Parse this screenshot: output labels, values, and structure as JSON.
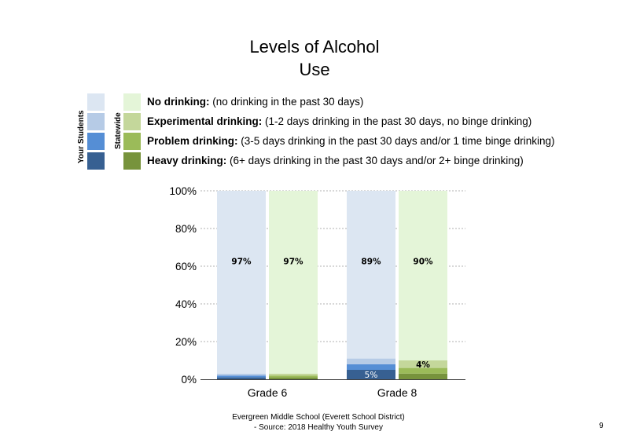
{
  "title_line1": "Levels of Alcohol",
  "title_line2": "Use",
  "legend": {
    "your_students_label": "Your Students",
    "statewide_label": "Statewide",
    "items": [
      {
        "bold": "No drinking:",
        "desc": " (no drinking in the past 30 days)",
        "your_color": "#dce6f2",
        "state_color": "#e4f5d8"
      },
      {
        "bold": "Experimental drinking:",
        "desc": " (1-2 days drinking in the past 30 days, no binge drinking)",
        "your_color": "#b6cbe6",
        "state_color": "#c4d79b"
      },
      {
        "bold": "Problem drinking:",
        "desc": " (3-5 days drinking in the past 30 days and/or 1 time binge drinking)",
        "your_color": "#558ed5",
        "state_color": "#9bbb59"
      },
      {
        "bold": "Heavy drinking:",
        "desc": " (6+ days drinking in the past 30 days and/or 2+ binge drinking)",
        "your_color": "#376092",
        "state_color": "#77933c"
      }
    ]
  },
  "chart_data": {
    "type": "bar",
    "stacked": true,
    "categories": [
      "Grade 6",
      "Grade 8"
    ],
    "y_ticks": [
      "0%",
      "20%",
      "40%",
      "60%",
      "80%",
      "100%"
    ],
    "ylim": [
      0,
      100
    ],
    "grid": true,
    "groups": [
      {
        "category": "Grade 6",
        "bars": [
          {
            "source": "Your Students",
            "segments": [
              1,
              1,
              1,
              97
            ],
            "colors": [
              "#376092",
              "#558ed5",
              "#b6cbe6",
              "#dce6f2"
            ],
            "labels": [
              null,
              null,
              null,
              "97%"
            ]
          },
          {
            "source": "Statewide",
            "segments": [
              1,
              1,
              1,
              97
            ],
            "colors": [
              "#77933c",
              "#9bbb59",
              "#c4d79b",
              "#e4f5d8"
            ],
            "labels": [
              null,
              null,
              null,
              "97%"
            ]
          }
        ]
      },
      {
        "category": "Grade 8",
        "bars": [
          {
            "source": "Your Students",
            "segments": [
              5,
              3,
              3,
              89
            ],
            "colors": [
              "#376092",
              "#558ed5",
              "#b6cbe6",
              "#dce6f2"
            ],
            "labels": [
              "5%",
              null,
              null,
              "89%"
            ]
          },
          {
            "source": "Statewide",
            "segments": [
              3,
              3,
              4,
              90
            ],
            "colors": [
              "#77933c",
              "#9bbb59",
              "#c4d79b",
              "#e4f5d8"
            ],
            "labels": [
              null,
              null,
              "4%",
              "90%"
            ]
          }
        ]
      }
    ]
  },
  "footer_line1": "Evergreen Middle  School (Everett School District)",
  "footer_line2": "- Source: 2018 Healthy  Youth Survey",
  "page_number": "9"
}
